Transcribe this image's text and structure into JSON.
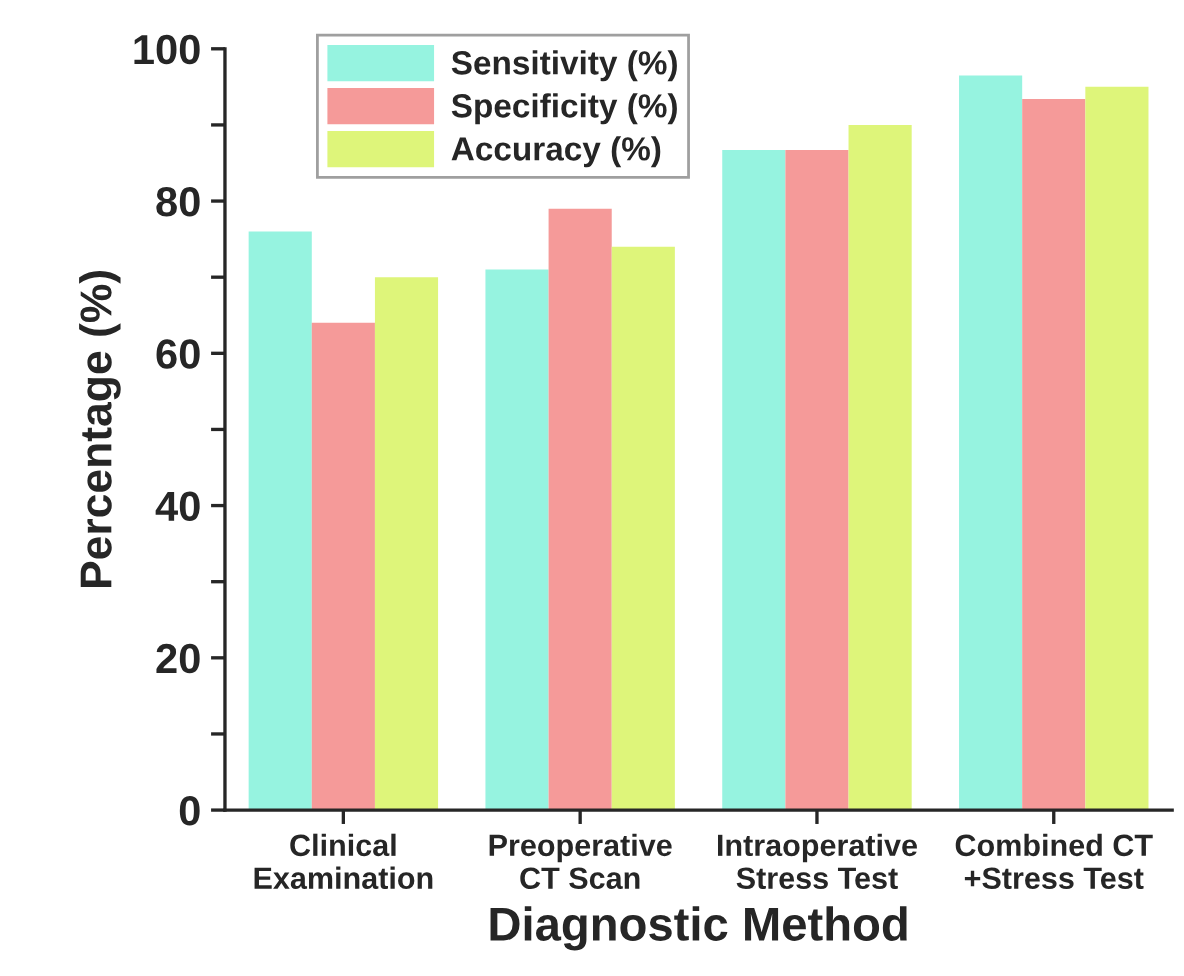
{
  "chart_data": {
    "type": "bar",
    "xlabel": "Diagnostic Method",
    "ylabel": "Percentage (%)",
    "categories": [
      "Clinical\nExamination",
      "Preoperative\nCT Scan",
      "Intraoperative\nStress Test",
      "Combined CT\n+Stress Test"
    ],
    "series": [
      {
        "name": "Sensitivity (%)",
        "color": "#96f3e0",
        "values": [
          76,
          71,
          86.7,
          96.5
        ]
      },
      {
        "name": "Specificity (%)",
        "color": "#f59a99",
        "values": [
          64,
          79,
          86.7,
          93.4
        ]
      },
      {
        "name": "Accuracy (%)",
        "color": "#def57a",
        "values": [
          70,
          74,
          90,
          95
        ]
      }
    ],
    "ylim": [
      0,
      100
    ],
    "yticks": [
      0,
      {
        "value": 10,
        "label": null
      },
      20,
      {
        "value": 30,
        "label": null
      },
      40,
      {
        "value": 50,
        "label": null
      },
      60,
      {
        "value": 70,
        "label": null
      },
      80,
      {
        "value": 90,
        "label": null
      },
      100
    ],
    "legend": "top left",
    "grid": false
  }
}
